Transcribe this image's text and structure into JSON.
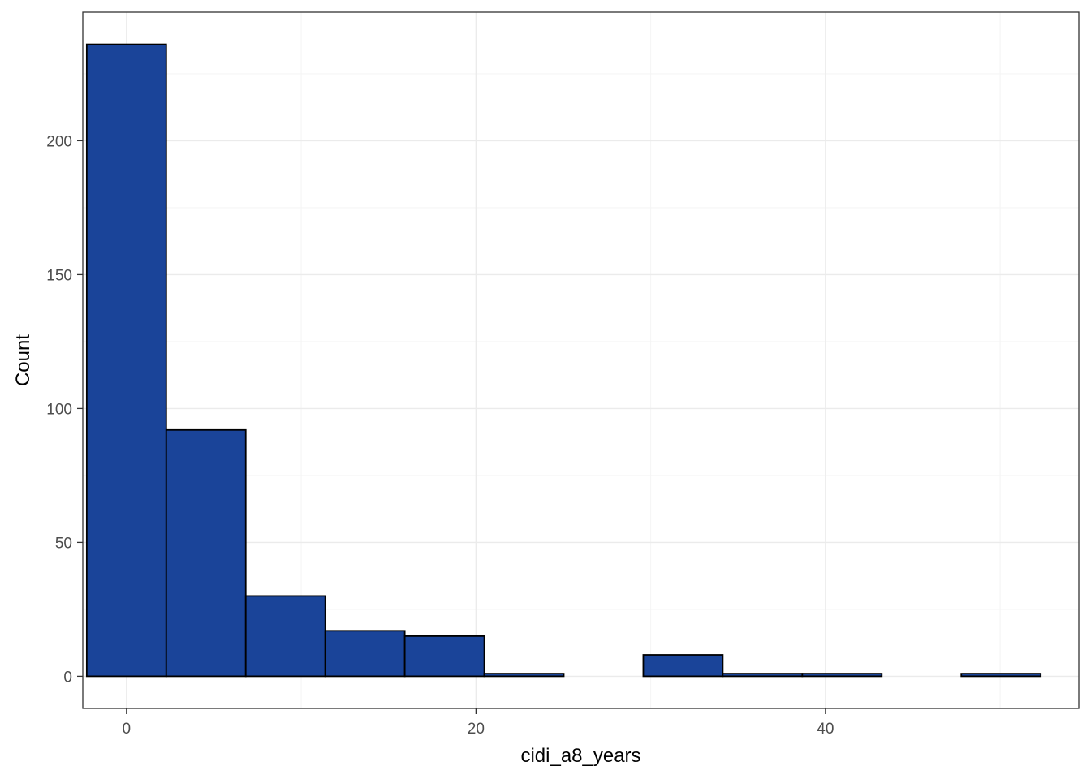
{
  "chart_data": {
    "type": "bar",
    "title": "",
    "xlabel": "cidi_a8_years",
    "ylabel": "Count",
    "x_ticks": [
      0,
      20,
      40
    ],
    "y_ticks": [
      0,
      50,
      100,
      150,
      200
    ],
    "xlim": [
      -2.5,
      54.5
    ],
    "ylim": [
      -12,
      248
    ],
    "grid": true,
    "bin_width": 4.55,
    "bins": [
      {
        "start": -2.275,
        "end": 2.275,
        "count": 236
      },
      {
        "start": 2.275,
        "end": 6.825,
        "count": 92
      },
      {
        "start": 6.825,
        "end": 11.375,
        "count": 30
      },
      {
        "start": 11.375,
        "end": 15.925,
        "count": 17
      },
      {
        "start": 15.925,
        "end": 20.475,
        "count": 15
      },
      {
        "start": 20.475,
        "end": 25.025,
        "count": 1
      },
      {
        "start": 25.025,
        "end": 29.575,
        "count": 0
      },
      {
        "start": 29.575,
        "end": 34.125,
        "count": 8
      },
      {
        "start": 34.125,
        "end": 38.675,
        "count": 1
      },
      {
        "start": 38.675,
        "end": 43.225,
        "count": 1
      },
      {
        "start": 43.225,
        "end": 47.775,
        "count": 0
      },
      {
        "start": 47.775,
        "end": 52.325,
        "count": 1
      }
    ],
    "colors": {
      "fill": "#1a4499",
      "stroke": "#000000",
      "grid_major": "#ebebeb",
      "grid_minor": "#f5f5f5",
      "panel_border": "#333333"
    }
  }
}
